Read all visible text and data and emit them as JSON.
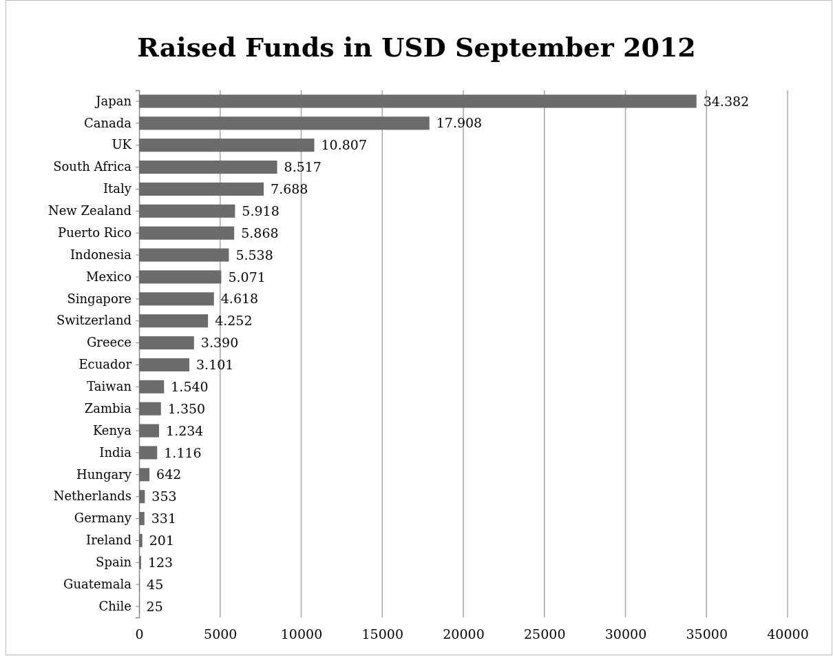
{
  "chart_data": {
    "type": "bar",
    "orientation": "horizontal",
    "title": "Raised Funds in USD September 2012",
    "categories": [
      "Japan",
      "Canada",
      "UK",
      "South Africa",
      "Italy",
      "New Zealand",
      "Puerto Rico",
      "Indonesia",
      "Mexico",
      "Singapore",
      "Switzerland",
      "Greece",
      "Ecuador",
      "Taiwan",
      "Zambia",
      "Kenya",
      "India",
      "Hungary",
      "Netherlands",
      "Germany",
      "Ireland",
      "Spain",
      "Guatemala",
      "Chile"
    ],
    "values": [
      34382,
      17908,
      10807,
      8517,
      7688,
      5918,
      5868,
      5538,
      5071,
      4618,
      4252,
      3390,
      3101,
      1540,
      1350,
      1234,
      1116,
      642,
      353,
      331,
      201,
      123,
      45,
      25
    ],
    "value_labels": [
      "34.382",
      "17.908",
      "10.807",
      "8.517",
      "7.688",
      "5.918",
      "5.868",
      "5.538",
      "5.071",
      "4.618",
      "4.252",
      "3.390",
      "3.101",
      "1.540",
      "1.350",
      "1.234",
      "1.116",
      "642",
      "353",
      "331",
      "201",
      "123",
      "45",
      "25"
    ],
    "color": "#6b6b6b",
    "xlim": [
      0,
      40000
    ],
    "xticks": [
      0,
      5000,
      10000,
      15000,
      20000,
      25000,
      30000,
      35000,
      40000
    ],
    "grid": "x"
  }
}
